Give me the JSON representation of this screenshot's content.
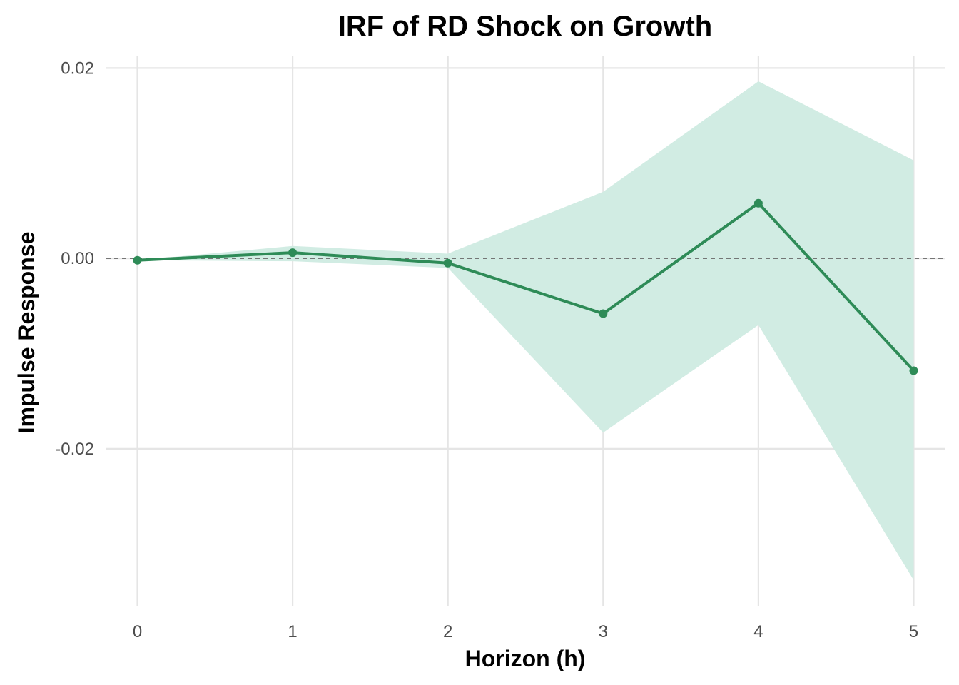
{
  "chart_data": {
    "type": "line",
    "title": "IRF of RD Shock on Growth",
    "xlabel": "Horizon (h)",
    "ylabel": "Impulse Response",
    "x": [
      0,
      1,
      2,
      3,
      4,
      5
    ],
    "x_tick_labels": [
      "0",
      "1",
      "2",
      "3",
      "4",
      "5"
    ],
    "y_ticks": [
      0.02,
      0.0,
      -0.02
    ],
    "y_tick_labels": [
      "0.02",
      "0.00",
      "-0.02"
    ],
    "xlim": [
      -0.2,
      5.2
    ],
    "ylim": [
      -0.0365,
      0.0213
    ],
    "series": [
      {
        "values": [
          -0.0002,
          0.0006,
          -0.0005,
          -0.0058,
          0.0058,
          -0.0118
        ],
        "lower": [
          -0.0002,
          -0.0003,
          -0.001,
          -0.0183,
          -0.007,
          -0.0338
        ],
        "upper": [
          -0.0002,
          0.0013,
          0.0005,
          0.007,
          0.0186,
          0.0103
        ],
        "line_color": "#2e8b57",
        "band_color": "#d1ece3"
      }
    ],
    "reference_line": {
      "y": 0,
      "style": "dashed",
      "color": "#666666"
    },
    "grid": true
  }
}
